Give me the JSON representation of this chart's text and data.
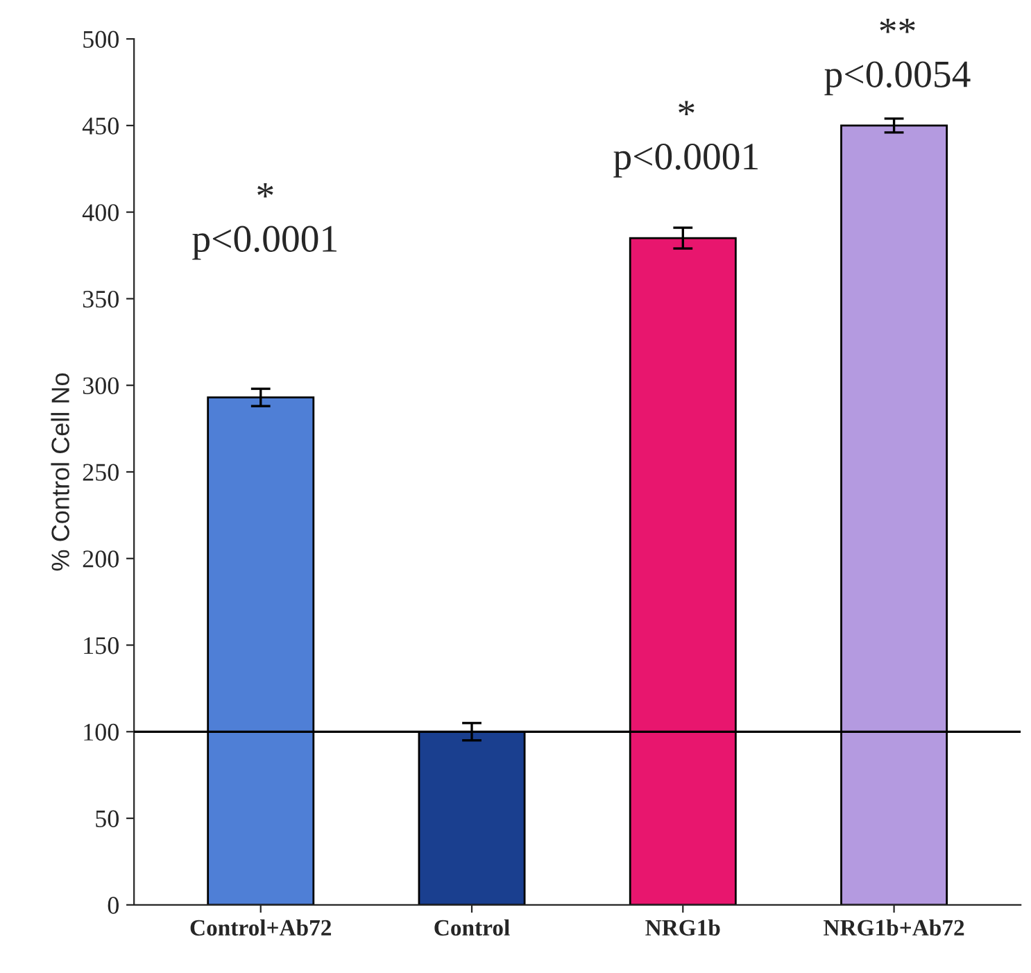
{
  "chart_data": {
    "type": "bar",
    "ylabel": "% Control Cell No",
    "categories": [
      "Control+Ab72",
      "Control",
      "NRG1b",
      "NRG1b+Ab72"
    ],
    "values": [
      293,
      100,
      385,
      450
    ],
    "errors": [
      5,
      5,
      6,
      4
    ],
    "colors": [
      "#4f7fd6",
      "#1a3f8f",
      "#e8166e",
      "#b49ae0"
    ],
    "ylim": [
      0,
      500
    ],
    "yticks": [
      0,
      50,
      100,
      150,
      200,
      250,
      300,
      350,
      400,
      450,
      500
    ],
    "ref_lines": [
      {
        "axis": "y",
        "value": 100,
        "color": "#000000"
      }
    ],
    "annotations": [
      "*\np<0.0001",
      "*\np<0.0001",
      "**\np<0.0054"
    ],
    "grid": false,
    "legend": false
  }
}
